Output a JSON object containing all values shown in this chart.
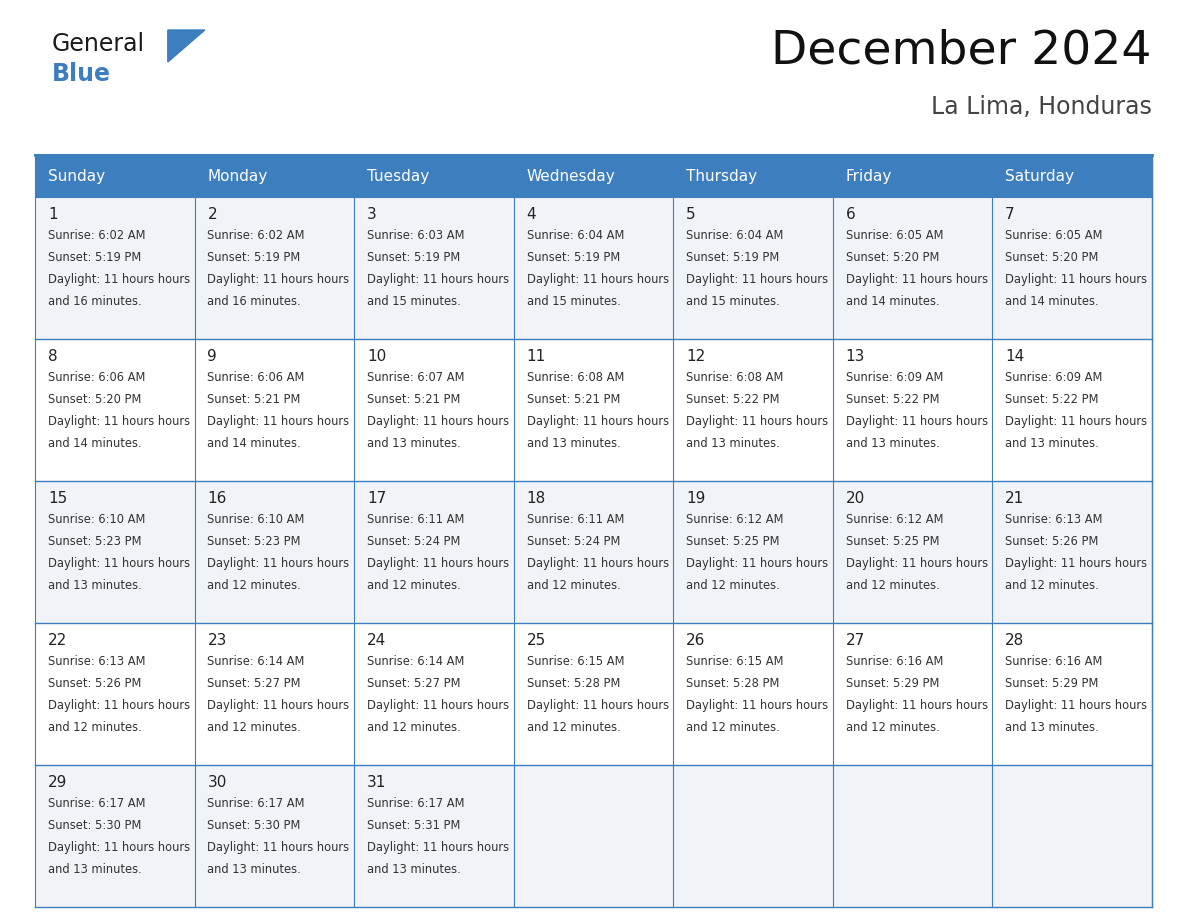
{
  "title": "December 2024",
  "subtitle": "La Lima, Honduras",
  "header_bg": "#3d7ebf",
  "header_text_color": "#ffffff",
  "cell_bg_light": "#f0f4f8",
  "cell_bg_white": "#ffffff",
  "border_color": "#3d7ebf",
  "day_names": [
    "Sunday",
    "Monday",
    "Tuesday",
    "Wednesday",
    "Thursday",
    "Friday",
    "Saturday"
  ],
  "days": [
    {
      "day": 1,
      "col": 0,
      "row": 0,
      "sunrise": "6:02 AM",
      "sunset": "5:19 PM",
      "daylight": "11 hours and 16 minutes."
    },
    {
      "day": 2,
      "col": 1,
      "row": 0,
      "sunrise": "6:02 AM",
      "sunset": "5:19 PM",
      "daylight": "11 hours and 16 minutes."
    },
    {
      "day": 3,
      "col": 2,
      "row": 0,
      "sunrise": "6:03 AM",
      "sunset": "5:19 PM",
      "daylight": "11 hours and 15 minutes."
    },
    {
      "day": 4,
      "col": 3,
      "row": 0,
      "sunrise": "6:04 AM",
      "sunset": "5:19 PM",
      "daylight": "11 hours and 15 minutes."
    },
    {
      "day": 5,
      "col": 4,
      "row": 0,
      "sunrise": "6:04 AM",
      "sunset": "5:19 PM",
      "daylight": "11 hours and 15 minutes."
    },
    {
      "day": 6,
      "col": 5,
      "row": 0,
      "sunrise": "6:05 AM",
      "sunset": "5:20 PM",
      "daylight": "11 hours and 14 minutes."
    },
    {
      "day": 7,
      "col": 6,
      "row": 0,
      "sunrise": "6:05 AM",
      "sunset": "5:20 PM",
      "daylight": "11 hours and 14 minutes."
    },
    {
      "day": 8,
      "col": 0,
      "row": 1,
      "sunrise": "6:06 AM",
      "sunset": "5:20 PM",
      "daylight": "11 hours and 14 minutes."
    },
    {
      "day": 9,
      "col": 1,
      "row": 1,
      "sunrise": "6:06 AM",
      "sunset": "5:21 PM",
      "daylight": "11 hours and 14 minutes."
    },
    {
      "day": 10,
      "col": 2,
      "row": 1,
      "sunrise": "6:07 AM",
      "sunset": "5:21 PM",
      "daylight": "11 hours and 13 minutes."
    },
    {
      "day": 11,
      "col": 3,
      "row": 1,
      "sunrise": "6:08 AM",
      "sunset": "5:21 PM",
      "daylight": "11 hours and 13 minutes."
    },
    {
      "day": 12,
      "col": 4,
      "row": 1,
      "sunrise": "6:08 AM",
      "sunset": "5:22 PM",
      "daylight": "11 hours and 13 minutes."
    },
    {
      "day": 13,
      "col": 5,
      "row": 1,
      "sunrise": "6:09 AM",
      "sunset": "5:22 PM",
      "daylight": "11 hours and 13 minutes."
    },
    {
      "day": 14,
      "col": 6,
      "row": 1,
      "sunrise": "6:09 AM",
      "sunset": "5:22 PM",
      "daylight": "11 hours and 13 minutes."
    },
    {
      "day": 15,
      "col": 0,
      "row": 2,
      "sunrise": "6:10 AM",
      "sunset": "5:23 PM",
      "daylight": "11 hours and 13 minutes."
    },
    {
      "day": 16,
      "col": 1,
      "row": 2,
      "sunrise": "6:10 AM",
      "sunset": "5:23 PM",
      "daylight": "11 hours and 12 minutes."
    },
    {
      "day": 17,
      "col": 2,
      "row": 2,
      "sunrise": "6:11 AM",
      "sunset": "5:24 PM",
      "daylight": "11 hours and 12 minutes."
    },
    {
      "day": 18,
      "col": 3,
      "row": 2,
      "sunrise": "6:11 AM",
      "sunset": "5:24 PM",
      "daylight": "11 hours and 12 minutes."
    },
    {
      "day": 19,
      "col": 4,
      "row": 2,
      "sunrise": "6:12 AM",
      "sunset": "5:25 PM",
      "daylight": "11 hours and 12 minutes."
    },
    {
      "day": 20,
      "col": 5,
      "row": 2,
      "sunrise": "6:12 AM",
      "sunset": "5:25 PM",
      "daylight": "11 hours and 12 minutes."
    },
    {
      "day": 21,
      "col": 6,
      "row": 2,
      "sunrise": "6:13 AM",
      "sunset": "5:26 PM",
      "daylight": "11 hours and 12 minutes."
    },
    {
      "day": 22,
      "col": 0,
      "row": 3,
      "sunrise": "6:13 AM",
      "sunset": "5:26 PM",
      "daylight": "11 hours and 12 minutes."
    },
    {
      "day": 23,
      "col": 1,
      "row": 3,
      "sunrise": "6:14 AM",
      "sunset": "5:27 PM",
      "daylight": "11 hours and 12 minutes."
    },
    {
      "day": 24,
      "col": 2,
      "row": 3,
      "sunrise": "6:14 AM",
      "sunset": "5:27 PM",
      "daylight": "11 hours and 12 minutes."
    },
    {
      "day": 25,
      "col": 3,
      "row": 3,
      "sunrise": "6:15 AM",
      "sunset": "5:28 PM",
      "daylight": "11 hours and 12 minutes."
    },
    {
      "day": 26,
      "col": 4,
      "row": 3,
      "sunrise": "6:15 AM",
      "sunset": "5:28 PM",
      "daylight": "11 hours and 12 minutes."
    },
    {
      "day": 27,
      "col": 5,
      "row": 3,
      "sunrise": "6:16 AM",
      "sunset": "5:29 PM",
      "daylight": "11 hours and 12 minutes."
    },
    {
      "day": 28,
      "col": 6,
      "row": 3,
      "sunrise": "6:16 AM",
      "sunset": "5:29 PM",
      "daylight": "11 hours and 13 minutes."
    },
    {
      "day": 29,
      "col": 0,
      "row": 4,
      "sunrise": "6:17 AM",
      "sunset": "5:30 PM",
      "daylight": "11 hours and 13 minutes."
    },
    {
      "day": 30,
      "col": 1,
      "row": 4,
      "sunrise": "6:17 AM",
      "sunset": "5:30 PM",
      "daylight": "11 hours and 13 minutes."
    },
    {
      "day": 31,
      "col": 2,
      "row": 4,
      "sunrise": "6:17 AM",
      "sunset": "5:31 PM",
      "daylight": "11 hours and 13 minutes."
    }
  ],
  "logo_text_general": "General",
  "logo_text_blue": "Blue",
  "logo_color_general": "#1a1a1a",
  "logo_color_blue": "#3d7ebf",
  "logo_triangle_color": "#3d7ebf"
}
